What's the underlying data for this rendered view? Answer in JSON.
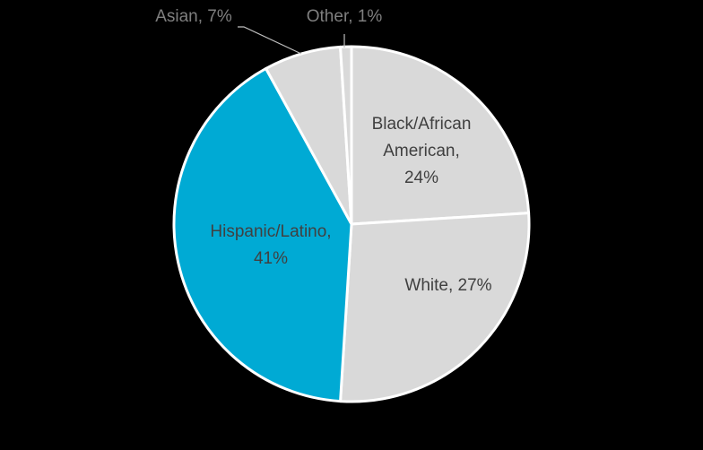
{
  "chart_data": {
    "type": "pie",
    "title": "",
    "start_angle_deg": 0,
    "direction": "clockwise",
    "legend": "none",
    "slices": [
      {
        "name": "Black/African American",
        "value": 24,
        "label_lines": [
          "Black/African",
          "American,",
          "24%"
        ],
        "color": "#d9d9d9",
        "label_position": "inside"
      },
      {
        "name": "White",
        "value": 27,
        "label_lines": [
          "White, 27%"
        ],
        "color": "#d9d9d9",
        "label_position": "inside"
      },
      {
        "name": "Hispanic/Latino",
        "value": 41,
        "label_lines": [
          "Hispanic/Latino,",
          "41%"
        ],
        "color": "#00aad4",
        "label_position": "inside"
      },
      {
        "name": "Asian",
        "value": 7,
        "label_lines": [
          "Asian, 7%"
        ],
        "color": "#d9d9d9",
        "label_position": "outside"
      },
      {
        "name": "Other",
        "value": 1,
        "label_lines": [
          "Other, 1%"
        ],
        "color": "#d9d9d9",
        "label_position": "outside"
      }
    ]
  }
}
